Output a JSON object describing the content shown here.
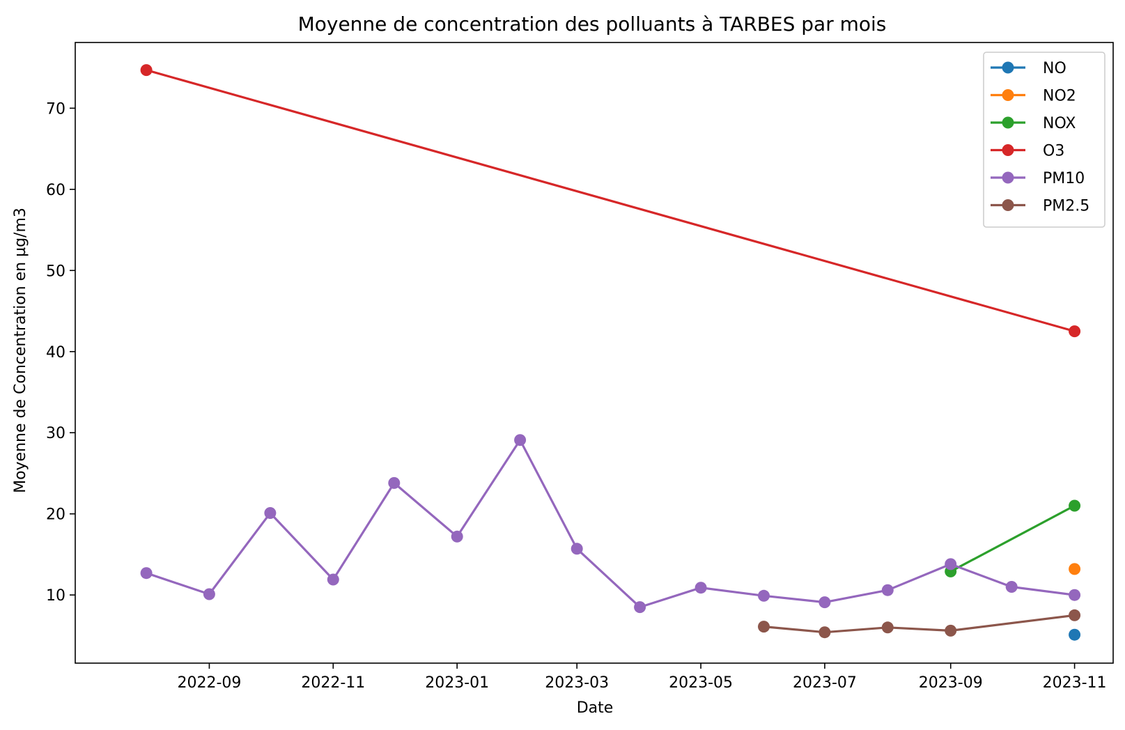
{
  "chart_data": {
    "type": "line",
    "title": "Moyenne de concentration des polluants à TARBES par mois",
    "xlabel": "Date",
    "ylabel": "Moyenne de Concentration en µg/m3",
    "x_range": [
      "2022-06-27",
      "2023-11-20"
    ],
    "ylim": [
      1.6,
      78.1
    ],
    "x_ticks": [
      "2022-09-01",
      "2022-11-01",
      "2023-01-01",
      "2023-03-01",
      "2023-05-01",
      "2023-07-01",
      "2023-09-01",
      "2023-11-01"
    ],
    "x_tick_labels": [
      "2022-09",
      "2022-11",
      "2023-01",
      "2023-03",
      "2023-05",
      "2023-07",
      "2023-09",
      "2023-11"
    ],
    "y_ticks": [
      10,
      20,
      30,
      40,
      50,
      60,
      70
    ],
    "y_tick_labels": [
      "10",
      "20",
      "30",
      "40",
      "50",
      "60",
      "70"
    ],
    "grid": false,
    "legend_position": "top-right",
    "series": [
      {
        "name": "NO",
        "color": "#1f77b4",
        "x": [
          "2023-11-01"
        ],
        "values": [
          5.1
        ]
      },
      {
        "name": "NO2",
        "color": "#ff7f0e",
        "x": [
          "2023-11-01"
        ],
        "values": [
          13.2
        ]
      },
      {
        "name": "NOX",
        "color": "#2ca02c",
        "x": [
          "2023-09-01",
          "2023-11-01"
        ],
        "values": [
          12.9,
          21.0
        ]
      },
      {
        "name": "O3",
        "color": "#d62728",
        "x": [
          "2022-08-01",
          "2023-11-01"
        ],
        "values": [
          74.7,
          42.5
        ]
      },
      {
        "name": "PM10",
        "color": "#9467bd",
        "x": [
          "2022-08-01",
          "2022-09-01",
          "2022-10-01",
          "2022-11-01",
          "2022-12-01",
          "2023-01-01",
          "2023-02-01",
          "2023-03-01",
          "2023-04-01",
          "2023-05-01",
          "2023-06-01",
          "2023-07-01",
          "2023-08-01",
          "2023-09-01",
          "2023-10-01",
          "2023-11-01"
        ],
        "values": [
          12.7,
          10.1,
          20.1,
          11.9,
          23.8,
          17.2,
          29.1,
          15.7,
          8.5,
          10.9,
          9.9,
          9.1,
          10.6,
          13.8,
          11.0,
          10.0
        ]
      },
      {
        "name": "PM2.5",
        "color": "#8c564b",
        "x": [
          "2023-06-01",
          "2023-07-01",
          "2023-08-01",
          "2023-09-01",
          "2023-11-01"
        ],
        "values": [
          6.1,
          5.4,
          6.0,
          5.6,
          7.5
        ]
      }
    ]
  }
}
